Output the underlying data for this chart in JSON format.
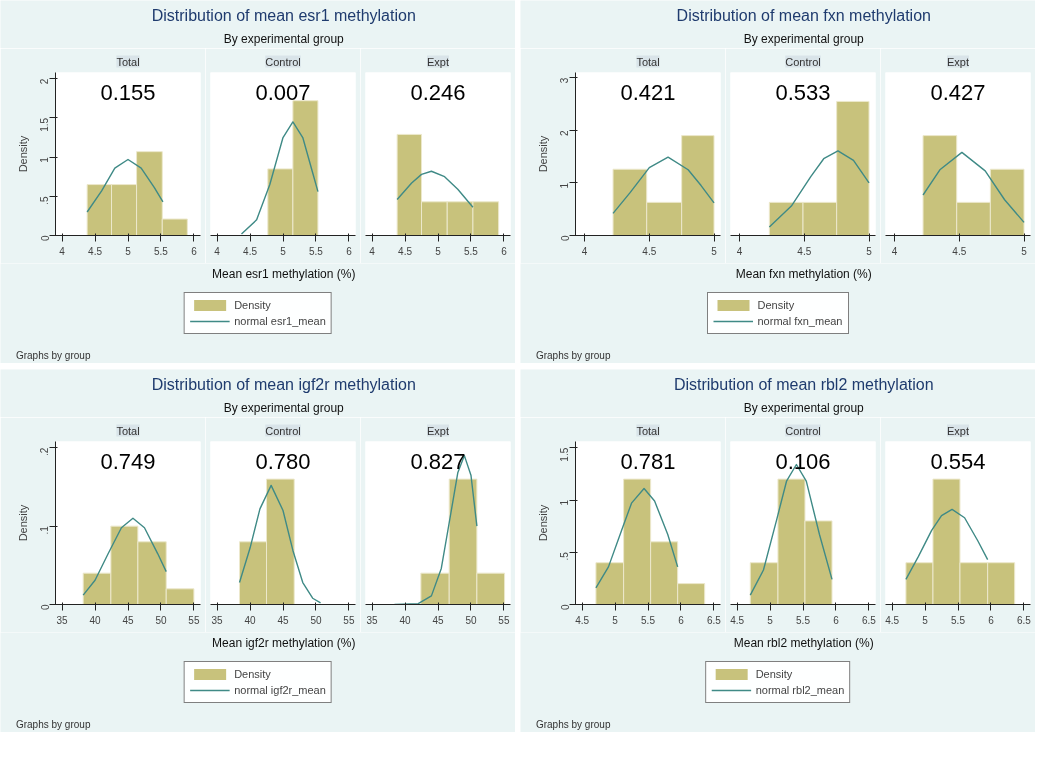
{
  "chart_data": [
    {
      "type": "histogram",
      "title": "Total",
      "ylabel": "Density",
      "annotations": [
        "0.155",
        "Distribution of mean esr1 methylation",
        "By experimental group",
        "Graphs by group"
      ],
      "xlim": [
        3.9,
        6.1
      ],
      "xticks": [
        4,
        4.5,
        5,
        5.5,
        6
      ],
      "ylim": [
        0,
        2.08
      ],
      "yticks": [
        0,
        {
          "value": 0.5,
          "label": ".5"
        },
        1,
        1.5,
        2
      ],
      "series": [
        {
          "type": "histogram",
          "color": "#c8c27c",
          "bins": [
            4.38,
            4.75,
            5.13,
            5.52,
            5.9
          ],
          "values": [
            0.65,
            0.65,
            1.07,
            0.21
          ]
        },
        {
          "type": "line",
          "color": "#3f8a86",
          "x": [
            4.38,
            4.6,
            4.8,
            5.0,
            5.2,
            5.4,
            5.53
          ],
          "values": [
            0.3,
            0.57,
            0.86,
            0.97,
            0.86,
            0.61,
            0.43
          ]
        }
      ]
    },
    {
      "type": "histogram",
      "title": "Control",
      "xlabel": "Mean esr1 methylation (%)",
      "legend": "bottom",
      "tick_labels": "x",
      "annotations": [
        "0.007"
      ],
      "xlim": [
        3.9,
        6.1
      ],
      "xticks": [
        4,
        4.5,
        5,
        5.5,
        6
      ],
      "ylim": [
        0,
        2.08
      ],
      "series": [
        {
          "type": "histogram",
          "name": "Density",
          "color": "#c8c27c",
          "bins": [
            4.77,
            5.15,
            5.53
          ],
          "values": [
            0.85,
            1.72
          ]
        },
        {
          "type": "line",
          "name": "normal esr1_mean",
          "color": "#3f8a86",
          "x": [
            4.37,
            4.6,
            4.8,
            5.0,
            5.15,
            5.3,
            5.45,
            5.53
          ],
          "values": [
            0.02,
            0.2,
            0.65,
            1.25,
            1.45,
            1.25,
            0.8,
            0.56
          ]
        }
      ]
    },
    {
      "type": "histogram",
      "title": "Expt",
      "tick_labels": "x",
      "annotations": [
        "0.246"
      ],
      "xlim": [
        3.9,
        6.1
      ],
      "xticks": [
        4,
        4.5,
        5,
        5.5,
        6
      ],
      "ylim": [
        0,
        2.08
      ],
      "series": [
        {
          "type": "histogram",
          "color": "#c8c27c",
          "bins": [
            4.38,
            4.75,
            5.14,
            5.53,
            5.92
          ],
          "values": [
            1.29,
            0.43,
            0.43,
            0.43
          ]
        },
        {
          "type": "line",
          "color": "#3f8a86",
          "x": [
            4.38,
            4.6,
            4.75,
            4.9,
            5.1,
            5.3,
            5.53
          ],
          "values": [
            0.46,
            0.67,
            0.78,
            0.82,
            0.75,
            0.59,
            0.36
          ]
        }
      ]
    },
    {
      "type": "histogram",
      "title": "Total",
      "ylabel": "Density",
      "annotations": [
        "0.421",
        "Distribution of mean fxn methylation",
        "By experimental group",
        "Graphs by group"
      ],
      "xlim": [
        3.93,
        5.05
      ],
      "xticks": [
        4,
        4.5,
        5
      ],
      "ylim": [
        0,
        3.1
      ],
      "yticks": [
        0,
        1,
        2,
        3
      ],
      "series": [
        {
          "type": "histogram",
          "color": "#c8c27c",
          "bins": [
            4.22,
            4.48,
            4.75,
            5.0
          ],
          "values": [
            1.26,
            0.63,
            1.9
          ]
        },
        {
          "type": "line",
          "color": "#3f8a86",
          "x": [
            4.22,
            4.35,
            4.5,
            4.645,
            4.8,
            4.9,
            5.0
          ],
          "values": [
            0.42,
            0.81,
            1.29,
            1.49,
            1.25,
            0.95,
            0.62
          ]
        }
      ]
    },
    {
      "type": "histogram",
      "title": "Control",
      "xlabel": "Mean fxn methylation (%)",
      "legend": "bottom",
      "tick_labels": "x",
      "annotations": [
        "0.533"
      ],
      "xlim": [
        3.93,
        5.05
      ],
      "xticks": [
        4,
        4.5,
        5
      ],
      "ylim": [
        0,
        3.1
      ],
      "series": [
        {
          "type": "histogram",
          "name": "Density",
          "color": "#c8c27c",
          "bins": [
            4.23,
            4.49,
            4.75,
            5.0
          ],
          "values": [
            0.63,
            0.63,
            2.55
          ]
        },
        {
          "type": "line",
          "name": "normal fxn_mean",
          "color": "#3f8a86",
          "x": [
            4.23,
            4.4,
            4.55,
            4.65,
            4.76,
            4.88,
            5.0
          ],
          "values": [
            0.16,
            0.56,
            1.12,
            1.46,
            1.61,
            1.43,
            1.0
          ]
        }
      ]
    },
    {
      "type": "histogram",
      "title": "Expt",
      "tick_labels": "x",
      "annotations": [
        "0.427"
      ],
      "xlim": [
        3.93,
        5.05
      ],
      "xticks": [
        4,
        4.5,
        5
      ],
      "ylim": [
        0,
        3.1
      ],
      "series": [
        {
          "type": "histogram",
          "color": "#c8c27c",
          "bins": [
            4.22,
            4.48,
            4.74,
            5.0
          ],
          "values": [
            1.9,
            0.63,
            1.26
          ]
        },
        {
          "type": "line",
          "color": "#3f8a86",
          "x": [
            4.22,
            4.35,
            4.52,
            4.7,
            4.85,
            5.0
          ],
          "values": [
            0.77,
            1.25,
            1.58,
            1.23,
            0.68,
            0.25
          ]
        }
      ]
    },
    {
      "type": "histogram",
      "title": "Total",
      "ylabel": "Density",
      "annotations": [
        "0.749",
        "Distribution of mean igf2r methylation",
        "By experimental group",
        "Graphs by group"
      ],
      "xlim": [
        34,
        56
      ],
      "xticks": [
        35,
        40,
        45,
        50,
        55
      ],
      "ylim": [
        0,
        0.208
      ],
      "yticks": [
        0,
        {
          "value": 0.1,
          "label": ".1"
        },
        {
          "value": 0.2,
          "label": ".2"
        }
      ],
      "series": [
        {
          "type": "histogram",
          "color": "#c8c27c",
          "bins": [
            38.2,
            42.4,
            46.5,
            50.8,
            55
          ],
          "values": [
            0.04,
            0.1,
            0.08,
            0.02
          ]
        },
        {
          "type": "line",
          "color": "#3f8a86",
          "x": [
            38.2,
            40,
            42,
            44,
            45.75,
            47.5,
            49.5,
            50.8
          ],
          "values": [
            0.012,
            0.031,
            0.065,
            0.098,
            0.11,
            0.098,
            0.065,
            0.042
          ]
        }
      ]
    },
    {
      "type": "histogram",
      "title": "Control",
      "xlabel": "Mean igf2r methylation (%)",
      "legend": "bottom",
      "tick_labels": "x",
      "annotations": [
        "0.780"
      ],
      "xlim": [
        34,
        56
      ],
      "xticks": [
        35,
        40,
        45,
        50,
        55
      ],
      "ylim": [
        0,
        0.208
      ],
      "series": [
        {
          "type": "histogram",
          "name": "Density",
          "color": "#c8c27c",
          "bins": [
            38.4,
            42.5,
            46.7
          ],
          "values": [
            0.08,
            0.16
          ]
        },
        {
          "type": "line",
          "name": "normal igf2r_mean",
          "color": "#3f8a86",
          "x": [
            38.4,
            40,
            41.5,
            43.2,
            45,
            46.5,
            48,
            49.5,
            50.7
          ],
          "values": [
            0.028,
            0.072,
            0.122,
            0.152,
            0.12,
            0.069,
            0.028,
            0.008,
            0.002
          ]
        }
      ]
    },
    {
      "type": "histogram",
      "title": "Expt",
      "tick_labels": "x",
      "annotations": [
        "0.827"
      ],
      "xlim": [
        34,
        56
      ],
      "xticks": [
        35,
        40,
        45,
        50,
        55
      ],
      "ylim": [
        0,
        0.208
      ],
      "series": [
        {
          "type": "histogram",
          "color": "#c8c27c",
          "bins": [
            42.4,
            46.7,
            50.9,
            55.1
          ],
          "values": [
            0.04,
            0.16,
            0.04
          ]
        },
        {
          "type": "line",
          "color": "#3f8a86",
          "x": [
            38.4,
            42,
            44,
            45.5,
            47,
            48,
            49,
            50,
            50.9
          ],
          "values": [
            0,
            0.001,
            0.011,
            0.046,
            0.119,
            0.168,
            0.19,
            0.165,
            0.1
          ]
        }
      ]
    },
    {
      "type": "histogram",
      "title": "Total",
      "ylabel": "Density",
      "annotations": [
        "0.781",
        "Distribution of mean rbl2 methylation",
        "By experimental group",
        "Graphs by group"
      ],
      "xlim": [
        4.4,
        6.6
      ],
      "xticks": [
        4.5,
        5,
        5.5,
        6,
        6.5
      ],
      "ylim": [
        0,
        1.56
      ],
      "yticks": [
        0,
        {
          "value": 0.5,
          "label": ".5"
        },
        1,
        1.5
      ],
      "series": [
        {
          "type": "histogram",
          "color": "#c8c27c",
          "bins": [
            4.71,
            5.13,
            5.54,
            5.95,
            6.36
          ],
          "values": [
            0.4,
            1.2,
            0.6,
            0.2
          ]
        },
        {
          "type": "line",
          "color": "#3f8a86",
          "x": [
            4.71,
            4.9,
            5.1,
            5.25,
            5.44,
            5.6,
            5.8,
            5.95
          ],
          "values": [
            0.16,
            0.36,
            0.71,
            0.97,
            1.11,
            0.99,
            0.67,
            0.36
          ]
        }
      ]
    },
    {
      "type": "histogram",
      "title": "Control",
      "xlabel": "Mean rbl2 methylation (%)",
      "legend": "bottom",
      "tick_labels": "x",
      "annotations": [
        "0.106"
      ],
      "xlim": [
        4.4,
        6.6
      ],
      "xticks": [
        4.5,
        5,
        5.5,
        6,
        6.5
      ],
      "ylim": [
        0,
        1.56
      ],
      "series": [
        {
          "type": "histogram",
          "name": "Density",
          "color": "#c8c27c",
          "bins": [
            4.7,
            5.12,
            5.53,
            5.94
          ],
          "values": [
            0.4,
            1.2,
            0.8
          ]
        },
        {
          "type": "line",
          "name": "normal rbl2_mean",
          "color": "#3f8a86",
          "x": [
            4.7,
            4.9,
            5.1,
            5.25,
            5.4,
            5.55,
            5.75,
            5.94
          ],
          "values": [
            0.09,
            0.33,
            0.81,
            1.18,
            1.34,
            1.18,
            0.67,
            0.24
          ]
        }
      ]
    },
    {
      "type": "histogram",
      "title": "Expt",
      "tick_labels": "x",
      "annotations": [
        "0.554"
      ],
      "xlim": [
        4.4,
        6.6
      ],
      "xticks": [
        4.5,
        5,
        5.5,
        6,
        6.5
      ],
      "ylim": [
        0,
        1.56
      ],
      "series": [
        {
          "type": "histogram",
          "color": "#c8c27c",
          "bins": [
            4.71,
            5.12,
            5.53,
            5.95,
            6.36
          ],
          "values": [
            0.4,
            1.2,
            0.4,
            0.4
          ]
        },
        {
          "type": "line",
          "color": "#3f8a86",
          "x": [
            4.71,
            4.9,
            5.1,
            5.25,
            5.41,
            5.6,
            5.8,
            5.95
          ],
          "values": [
            0.24,
            0.46,
            0.71,
            0.85,
            0.91,
            0.83,
            0.61,
            0.43
          ]
        }
      ]
    }
  ]
}
